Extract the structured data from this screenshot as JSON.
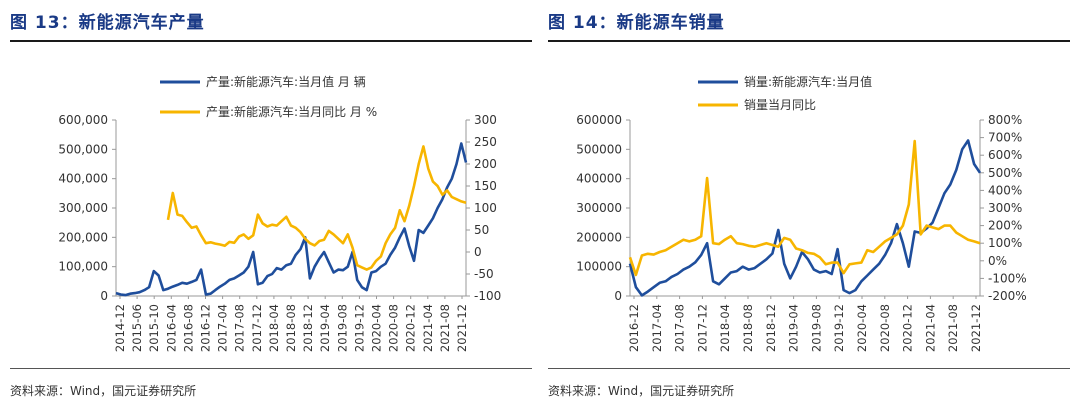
{
  "panels": [
    {
      "title": "图 13：新能源汽车产量",
      "source": "资料来源：Wind，国元证券研究所"
    },
    {
      "title": "图 14：新能源车销量",
      "source": "资料来源：Wind，国元证券研究所"
    }
  ],
  "chart_data": [
    {
      "type": "line",
      "title": "图 13：新能源汽车产量",
      "x_tick_labels": [
        "2014-12",
        "2015-06",
        "2015-10",
        "2016-04",
        "2016-08",
        "2016-12",
        "2017-04",
        "2017-08",
        "2017-12",
        "2018-04",
        "2018-08",
        "2018-12",
        "2019-04",
        "2019-08",
        "2019-12",
        "2020-04",
        "2020-08",
        "2020-12",
        "2021-04",
        "2021-08",
        "2021-12"
      ],
      "y_left": {
        "lim": [
          0,
          600000
        ],
        "ticks": [
          "0",
          "100,000",
          "200,000",
          "300,000",
          "400,000",
          "500,000",
          "600,000"
        ]
      },
      "y_right": {
        "lim": [
          -100,
          300
        ],
        "ticks": [
          "-100",
          "-50",
          "0",
          "50",
          "100",
          "150",
          "200",
          "250",
          "300"
        ]
      },
      "legend_position": "top-center",
      "series": [
        {
          "name": "产量:新能源汽车:当月值 月 辆",
          "axis": "left",
          "color": "#1f4e9c",
          "values": [
            10000,
            5000,
            3000,
            8000,
            10000,
            13000,
            20000,
            30000,
            85000,
            70000,
            20000,
            25000,
            32000,
            38000,
            45000,
            42000,
            48000,
            55000,
            90000,
            5000,
            8000,
            20000,
            32000,
            42000,
            55000,
            60000,
            70000,
            80000,
            100000,
            150000,
            40000,
            45000,
            68000,
            75000,
            95000,
            90000,
            105000,
            110000,
            140000,
            160000,
            200000,
            60000,
            100000,
            128000,
            150000,
            115000,
            80000,
            90000,
            88000,
            100000,
            150000,
            55000,
            30000,
            20000,
            80000,
            85000,
            100000,
            110000,
            140000,
            165000,
            200000,
            230000,
            170000,
            120000,
            225000,
            215000,
            240000,
            265000,
            300000,
            330000,
            370000,
            400000,
            450000,
            520000,
            455000
          ]
        },
        {
          "name": "产量:新能源汽车:当月同比 月 %",
          "axis": "right",
          "color": "#f7b500",
          "values": [
            null,
            null,
            null,
            null,
            null,
            null,
            null,
            null,
            null,
            null,
            null,
            73,
            134,
            85,
            82,
            68,
            55,
            58,
            38,
            20,
            22,
            19,
            17,
            14,
            23,
            21,
            35,
            40,
            30,
            38,
            85,
            65,
            58,
            62,
            60,
            70,
            80,
            60,
            55,
            45,
            30,
            20,
            15,
            25,
            28,
            48,
            40,
            30,
            20,
            40,
            10,
            -30,
            -35,
            -40,
            -35,
            -20,
            -10,
            20,
            40,
            55,
            95,
            70,
            105,
            150,
            200,
            240,
            190,
            160,
            150,
            130,
            140,
            125,
            120,
            115,
            112
          ]
        }
      ]
    },
    {
      "type": "line",
      "title": "图 14：新能源车销量",
      "x_tick_labels": [
        "2016-12",
        "2017-04",
        "2017-08",
        "2017-12",
        "2018-04",
        "2018-08",
        "2018-12",
        "2019-04",
        "2019-08",
        "2019-12",
        "2020-04",
        "2020-08",
        "2020-12",
        "2021-04",
        "2021-08",
        "2021-12"
      ],
      "y_left": {
        "lim": [
          0,
          600000
        ],
        "ticks": [
          "0",
          "100000",
          "200000",
          "300000",
          "400000",
          "500000",
          "600000"
        ]
      },
      "y_right": {
        "lim": [
          -200,
          800
        ],
        "ticks": [
          "-200%",
          "-100%",
          "0%",
          "100%",
          "200%",
          "300%",
          "400%",
          "500%",
          "600%",
          "700%",
          "800%"
        ]
      },
      "legend_position": "top-center",
      "series": [
        {
          "name": "销量:新能源汽车:当月值",
          "axis": "left",
          "color": "#1f4e9c",
          "values": [
            110000,
            30000,
            2000,
            15000,
            30000,
            45000,
            50000,
            65000,
            75000,
            90000,
            100000,
            115000,
            140000,
            180000,
            50000,
            40000,
            60000,
            80000,
            85000,
            100000,
            90000,
            95000,
            110000,
            125000,
            145000,
            225000,
            110000,
            60000,
            100000,
            150000,
            125000,
            90000,
            80000,
            85000,
            75000,
            160000,
            20000,
            10000,
            20000,
            50000,
            70000,
            90000,
            110000,
            140000,
            180000,
            245000,
            180000,
            100000,
            220000,
            215000,
            230000,
            250000,
            300000,
            350000,
            380000,
            430000,
            500000,
            530000,
            450000,
            420000
          ]
        },
        {
          "name": "销量当月同比",
          "axis": "right",
          "color": "#f7b500",
          "values": [
            20,
            -80,
            30,
            40,
            35,
            50,
            60,
            80,
            100,
            120,
            110,
            120,
            140,
            470,
            100,
            95,
            120,
            140,
            100,
            95,
            85,
            80,
            90,
            100,
            90,
            80,
            130,
            120,
            70,
            60,
            45,
            40,
            20,
            -20,
            -10,
            -10,
            -70,
            -20,
            -15,
            -10,
            60,
            50,
            80,
            110,
            130,
            150,
            200,
            320,
            680,
            150,
            200,
            190,
            180,
            200,
            200,
            160,
            140,
            120,
            110,
            100
          ]
        }
      ]
    }
  ]
}
